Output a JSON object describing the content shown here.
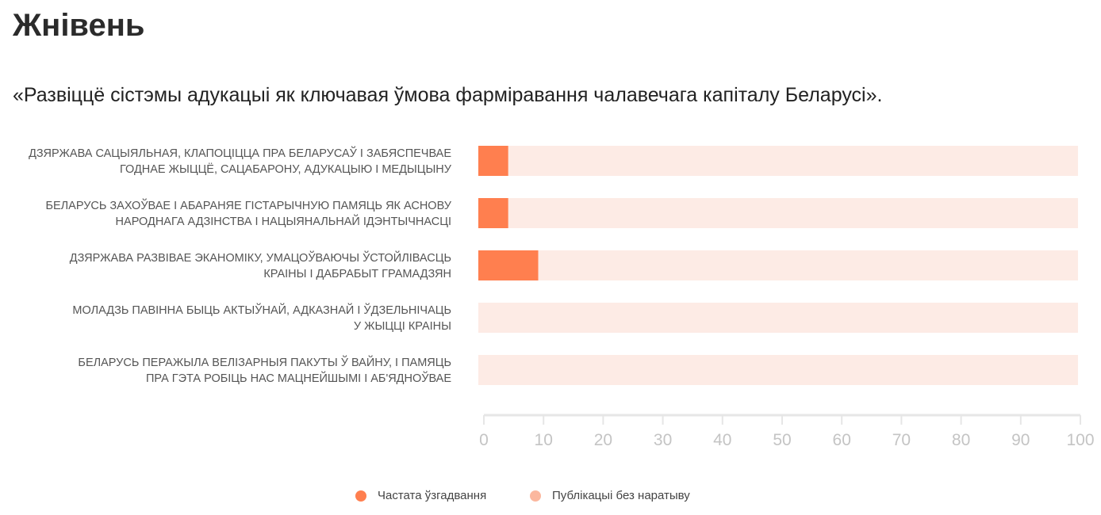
{
  "page": {
    "title": "Жнівень",
    "subtitle": "«Развіццё сістэмы адукацыі як ключавая ўмова фарміравання чалавечага капіталу Беларусі»."
  },
  "chart_data": {
    "type": "bar",
    "orientation": "horizontal",
    "stacked": true,
    "categories": [
      [
        "ДЗЯРЖАВА САЦЫЯЛЬНАЯ, КЛАПОЦІЦЦА ПРА БЕЛАРУСАЎ І ЗАБЯСПЕЧВАЕ",
        "ГОДНАЕ ЖЫЦЦЁ, САЦАБАРОНУ, АДУКАЦЫЮ І МЕДЫЦЫНУ"
      ],
      [
        "БЕЛАРУСЬ ЗАХОЎВАЕ І АБАРАНЯЕ ГІСТАРЫЧНУЮ ПАМЯЦЬ ЯК АСНОВУ",
        "НАРОДНАГА АДЗІНСТВА І НАЦЫЯНАЛЬНАЙ ІДЭНТЫЧНАСЦІ"
      ],
      [
        "ДЗЯРЖАВА РАЗВІВАЕ ЭКАНОМІКУ, УМАЦОЎВАЮЧЫ ЎСТОЙЛІВАСЦЬ",
        "КРАІНЫ І ДАБРАБЫТ ГРАМАДЗЯН"
      ],
      [
        "МОЛАДЗЬ ПАВІННА БЫЦЬ АКТЫЎНАЙ, АДКАЗНАЙ І ЎДЗЕЛЬНІЧАЦЬ",
        "У ЖЫЦЦІ КРАІНЫ"
      ],
      [
        "БЕЛАРУСЬ ПЕРАЖЫЛА ВЕЛІЗАРНЫЯ ПАКУТЫ Ў ВАЙНУ, І ПАМЯЦЬ",
        "ПРА ГЭТА РОБІЦЬ НАС МАЦНЕЙШЫМІ І АБ'ЯДНОЎВАЕ"
      ]
    ],
    "series": [
      {
        "name": "Частата ўзгадвання",
        "color": "#ff7f4f",
        "values": [
          5,
          5,
          10,
          0,
          0
        ]
      },
      {
        "name": "Публікацыі без наратыву",
        "color": "#fdebe5",
        "values": [
          95,
          95,
          90,
          100,
          100
        ]
      }
    ],
    "legend_colors": [
      "#ff7f4f",
      "#fbb79e"
    ],
    "xlim": [
      0,
      100
    ],
    "xticks": [
      "0",
      "10",
      "20",
      "30",
      "40",
      "50",
      "60",
      "70",
      "80",
      "90",
      "100"
    ],
    "legend_position": "bottom",
    "grid": false
  }
}
